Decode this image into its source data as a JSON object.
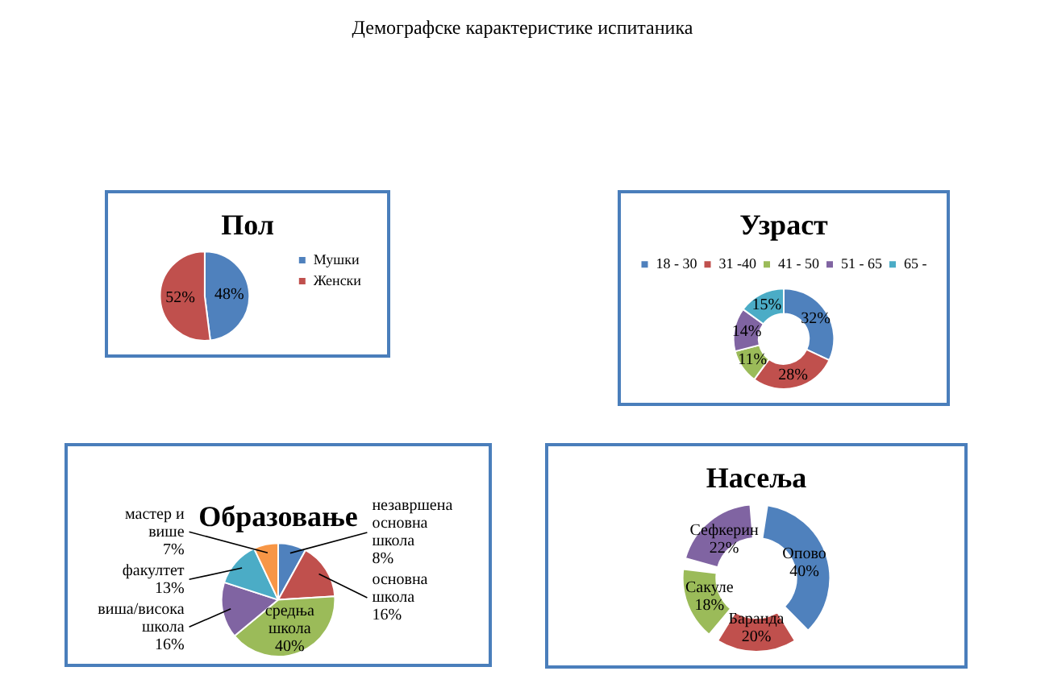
{
  "chart_data": [
    {
      "type": "other",
      "title": "Демографске карактеристике испитаника"
    },
    {
      "type": "pie",
      "title": "Пол",
      "categories": [
        "Мушки",
        "Женски"
      ],
      "values": [
        48,
        52
      ],
      "colors": [
        "#4f81bd",
        "#c0504d"
      ],
      "value_labels": [
        "48%",
        "52%"
      ],
      "legend": "right"
    },
    {
      "type": "donut",
      "title": "Узраст",
      "categories": [
        "18 - 30",
        "31 -40",
        "41 - 50",
        "51 - 65",
        "65 -"
      ],
      "values": [
        32,
        28,
        11,
        14,
        15
      ],
      "colors": [
        "#4f81bd",
        "#c0504d",
        "#9bbb59",
        "#8064a2",
        "#4bacc6"
      ],
      "value_labels": [
        "32%",
        "28%",
        "11%",
        "14%",
        "15%"
      ],
      "legend": "top"
    },
    {
      "type": "pie",
      "title": "Образовање",
      "categories": [
        "незавршена основна школа",
        "основна школа",
        "средња школа",
        "виша/висока школа",
        "факултет",
        "мастер и више"
      ],
      "values": [
        8,
        16,
        40,
        16,
        13,
        7
      ],
      "colors": [
        "#4f81bd",
        "#c0504d",
        "#9bbb59",
        "#8064a2",
        "#4bacc6",
        "#f79646"
      ],
      "value_labels": [
        "8%",
        "16%",
        "40%",
        "16%",
        "13%",
        "7%"
      ],
      "legend": false
    },
    {
      "type": "donut",
      "title": "Насеља",
      "categories": [
        "Опово",
        "Баранда",
        "Сакуле",
        "Сефкерин"
      ],
      "values": [
        40,
        20,
        18,
        22
      ],
      "colors": [
        "#4f81bd",
        "#c0504d",
        "#9bbb59",
        "#8064a2"
      ],
      "value_labels": [
        "40%",
        "20%",
        "18%",
        "22%"
      ],
      "legend": false
    }
  ]
}
